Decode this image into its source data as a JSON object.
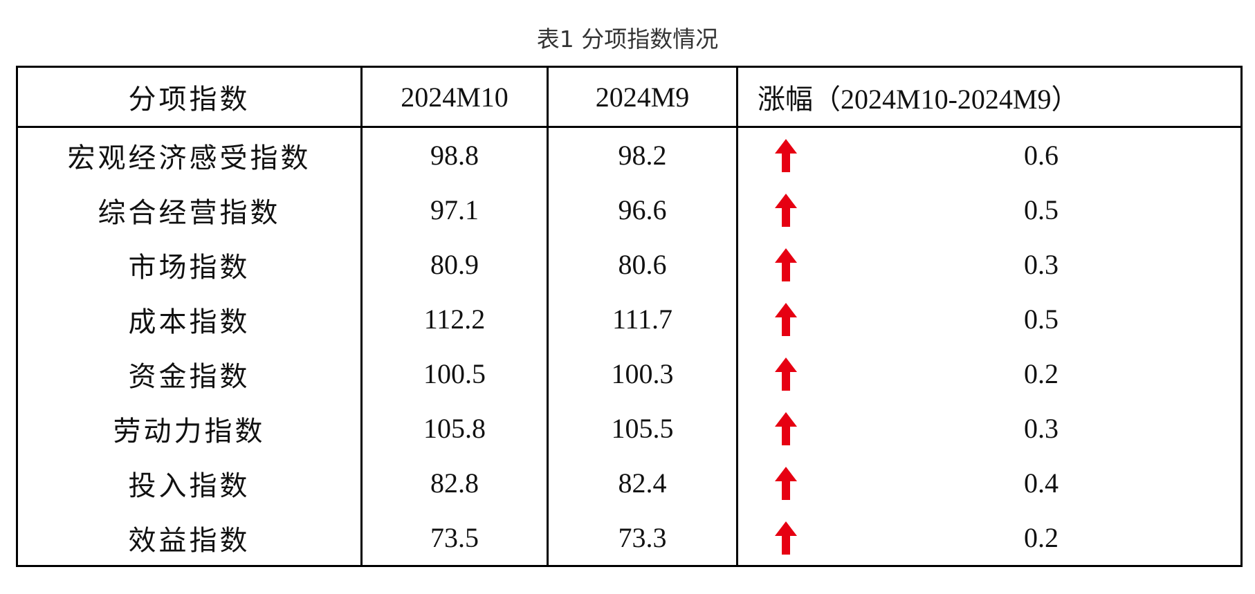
{
  "title": "表1 分项指数情况",
  "table": {
    "header": [
      "分项指数",
      "2024M10",
      "2024M9",
      "涨幅（2024M10-2024M9）"
    ],
    "rows": [
      [
        "宏观经济感受指数",
        98.8,
        98.2,
        0.6
      ],
      [
        "综合经营指数",
        97.1,
        96.6,
        0.5
      ],
      [
        "市场指数",
        80.9,
        80.6,
        0.3
      ],
      [
        "成本指数",
        112.2,
        111.7,
        0.5
      ],
      [
        "资金指数",
        100.5,
        100.3,
        0.2
      ],
      [
        "劳动力指数",
        105.8,
        105.5,
        0.3
      ],
      [
        "投入指数",
        82.8,
        82.4,
        0.4
      ],
      [
        "效益指数",
        73.5,
        73.3,
        0.2
      ]
    ]
  }
}
